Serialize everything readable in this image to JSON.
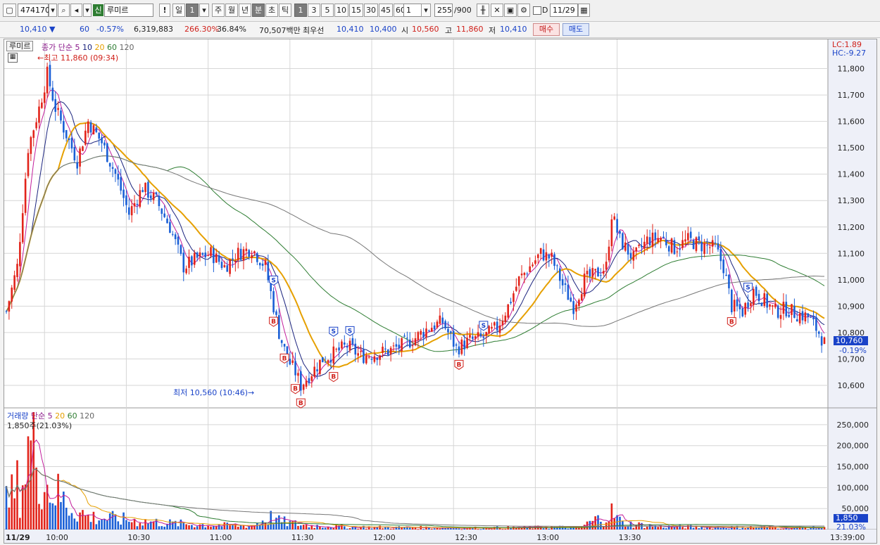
{
  "toolbar": {
    "code": "474170",
    "badge": "신",
    "name": "루미르",
    "excl": "!",
    "period_day": "일",
    "period_num": "1",
    "periods": [
      "주",
      "월",
      "년",
      "분",
      "초",
      "틱"
    ],
    "minute_options": [
      "1",
      "3",
      "5",
      "10",
      "15",
      "30",
      "45",
      "60"
    ],
    "custom_min": "1",
    "count": "255",
    "count_total": "/900",
    "flag": "D",
    "date": "11/29"
  },
  "quote": {
    "price": "10,410",
    "change": "60",
    "change_pct": "-0.57%",
    "volume": "6,319,883",
    "vol_ratio": "266.30%",
    "turnover": "36.84%",
    "amount": "70,507백만",
    "quote_label": "최우선",
    "ask": "10,410",
    "bid": "10,400",
    "open_label": "시",
    "open": "10,560",
    "high_label": "고",
    "high": "11,860",
    "low_label": "저",
    "low": "10,410",
    "buy_label": "매수",
    "sell_label": "매도"
  },
  "price_panel": {
    "name_tag": "루미르",
    "legend": [
      {
        "label": "종가 단순",
        "color": "#8b1a8b"
      },
      {
        "label": "5",
        "color": "#8b1a8b"
      },
      {
        "label": "10",
        "color": "#1a237e"
      },
      {
        "label": "20",
        "color": "#e6a000"
      },
      {
        "label": "60",
        "color": "#2e7d32"
      },
      {
        "label": "120",
        "color": "#666666"
      }
    ],
    "lc": "LC:1.89",
    "hc": "HC:-9.27",
    "high_note": "최고 11,860 (09:34)",
    "low_note": "최저 10,560 (10:46)",
    "last_price": "10,760",
    "last_pct": "-0.19%"
  },
  "volume_panel": {
    "legend": [
      {
        "label": "거래량",
        "color": "#1a43c8"
      },
      {
        "label": "단순",
        "color": "#8b1a8b"
      },
      {
        "label": "5",
        "color": "#8b1a8b"
      },
      {
        "label": "20",
        "color": "#e6a000"
      },
      {
        "label": "60",
        "color": "#2e7d32"
      },
      {
        "label": "120",
        "color": "#666666"
      }
    ],
    "note": "1,850주(21.03%)",
    "last_volume": "1,850",
    "last_pct": "21.03%"
  },
  "chart_data": {
    "type": "candlestick",
    "y_axis": {
      "ticks": [
        "11,800",
        "11,700",
        "11,600",
        "11,500",
        "11,400",
        "11,300",
        "11,200",
        "11,100",
        "11,000",
        "10,900",
        "10,800",
        "10,700",
        "10,600"
      ],
      "range": [
        10520,
        11900
      ]
    },
    "volume_axis": {
      "ticks": [
        "250,000",
        "200,000",
        "150,000",
        "100,000",
        "50,000"
      ],
      "range": [
        0,
        280000
      ]
    },
    "x_axis": {
      "labels": [
        "11/29",
        "10:00",
        "10:30",
        "11:00",
        "11:30",
        "12:00",
        "12:30",
        "13:00",
        "13:30",
        "13:39:00"
      ]
    },
    "price_path": [
      [
        0,
        10880
      ],
      [
        4,
        11050
      ],
      [
        8,
        11500
      ],
      [
        12,
        11650
      ],
      [
        15,
        11780
      ],
      [
        18,
        11650
      ],
      [
        22,
        11550
      ],
      [
        26,
        11450
      ],
      [
        30,
        11600
      ],
      [
        35,
        11520
      ],
      [
        40,
        11400
      ],
      [
        45,
        11250
      ],
      [
        50,
        11350
      ],
      [
        55,
        11300
      ],
      [
        60,
        11200
      ],
      [
        65,
        11050
      ],
      [
        70,
        11080
      ],
      [
        75,
        11100
      ],
      [
        80,
        11050
      ],
      [
        85,
        11100
      ],
      [
        90,
        11120
      ],
      [
        95,
        11050
      ],
      [
        98,
        10900
      ],
      [
        100,
        10800
      ],
      [
        103,
        10700
      ],
      [
        106,
        10650
      ],
      [
        108,
        10600
      ],
      [
        112,
        10650
      ],
      [
        116,
        10700
      ],
      [
        120,
        10720
      ],
      [
        125,
        10750
      ],
      [
        130,
        10710
      ],
      [
        135,
        10720
      ],
      [
        140,
        10730
      ],
      [
        145,
        10750
      ],
      [
        150,
        10780
      ],
      [
        155,
        10820
      ],
      [
        160,
        10840
      ],
      [
        165,
        10740
      ],
      [
        170,
        10770
      ],
      [
        175,
        10780
      ],
      [
        180,
        10820
      ],
      [
        184,
        10900
      ],
      [
        188,
        11000
      ],
      [
        192,
        11050
      ],
      [
        196,
        11100
      ],
      [
        200,
        11080
      ],
      [
        204,
        10980
      ],
      [
        208,
        10900
      ],
      [
        212,
        11000
      ],
      [
        216,
        11020
      ],
      [
        220,
        11050
      ],
      [
        222,
        11250
      ],
      [
        225,
        11150
      ],
      [
        230,
        11080
      ],
      [
        235,
        11150
      ],
      [
        240,
        11160
      ],
      [
        245,
        11120
      ],
      [
        250,
        11150
      ],
      [
        255,
        11130
      ],
      [
        260,
        11120
      ],
      [
        263,
        11050
      ],
      [
        266,
        10900
      ],
      [
        270,
        10880
      ],
      [
        274,
        10960
      ],
      [
        278,
        10920
      ],
      [
        282,
        10880
      ],
      [
        286,
        10890
      ],
      [
        290,
        10870
      ],
      [
        294,
        10860
      ],
      [
        298,
        10800
      ],
      [
        300,
        10760
      ]
    ],
    "volume_profile": [
      [
        0,
        60000
      ],
      [
        6,
        120000
      ],
      [
        10,
        240000
      ],
      [
        14,
        110000
      ],
      [
        18,
        90000
      ],
      [
        22,
        60000
      ],
      [
        26,
        45000
      ],
      [
        30,
        30000
      ],
      [
        40,
        25000
      ],
      [
        50,
        20000
      ],
      [
        60,
        15000
      ],
      [
        70,
        12000
      ],
      [
        80,
        10000
      ],
      [
        90,
        9000
      ],
      [
        95,
        25000
      ],
      [
        98,
        30000
      ],
      [
        100,
        20000
      ],
      [
        110,
        10000
      ],
      [
        130,
        6000
      ],
      [
        150,
        5000
      ],
      [
        170,
        4000
      ],
      [
        190,
        5000
      ],
      [
        200,
        6000
      ],
      [
        210,
        5000
      ],
      [
        222,
        40000
      ],
      [
        226,
        15000
      ],
      [
        240,
        7000
      ],
      [
        260,
        6000
      ],
      [
        280,
        5000
      ],
      [
        300,
        4000
      ]
    ],
    "signals": [
      {
        "bar": 98,
        "type": "S"
      },
      {
        "bar": 98,
        "type": "B"
      },
      {
        "bar": 102,
        "type": "B"
      },
      {
        "bar": 106,
        "type": "B"
      },
      {
        "bar": 108,
        "type": "B"
      },
      {
        "bar": 120,
        "type": "S"
      },
      {
        "bar": 120,
        "type": "B"
      },
      {
        "bar": 126,
        "type": "S"
      },
      {
        "bar": 166,
        "type": "B"
      },
      {
        "bar": 175,
        "type": "S"
      },
      {
        "bar": 266,
        "type": "B"
      },
      {
        "bar": 272,
        "type": "S"
      }
    ]
  }
}
